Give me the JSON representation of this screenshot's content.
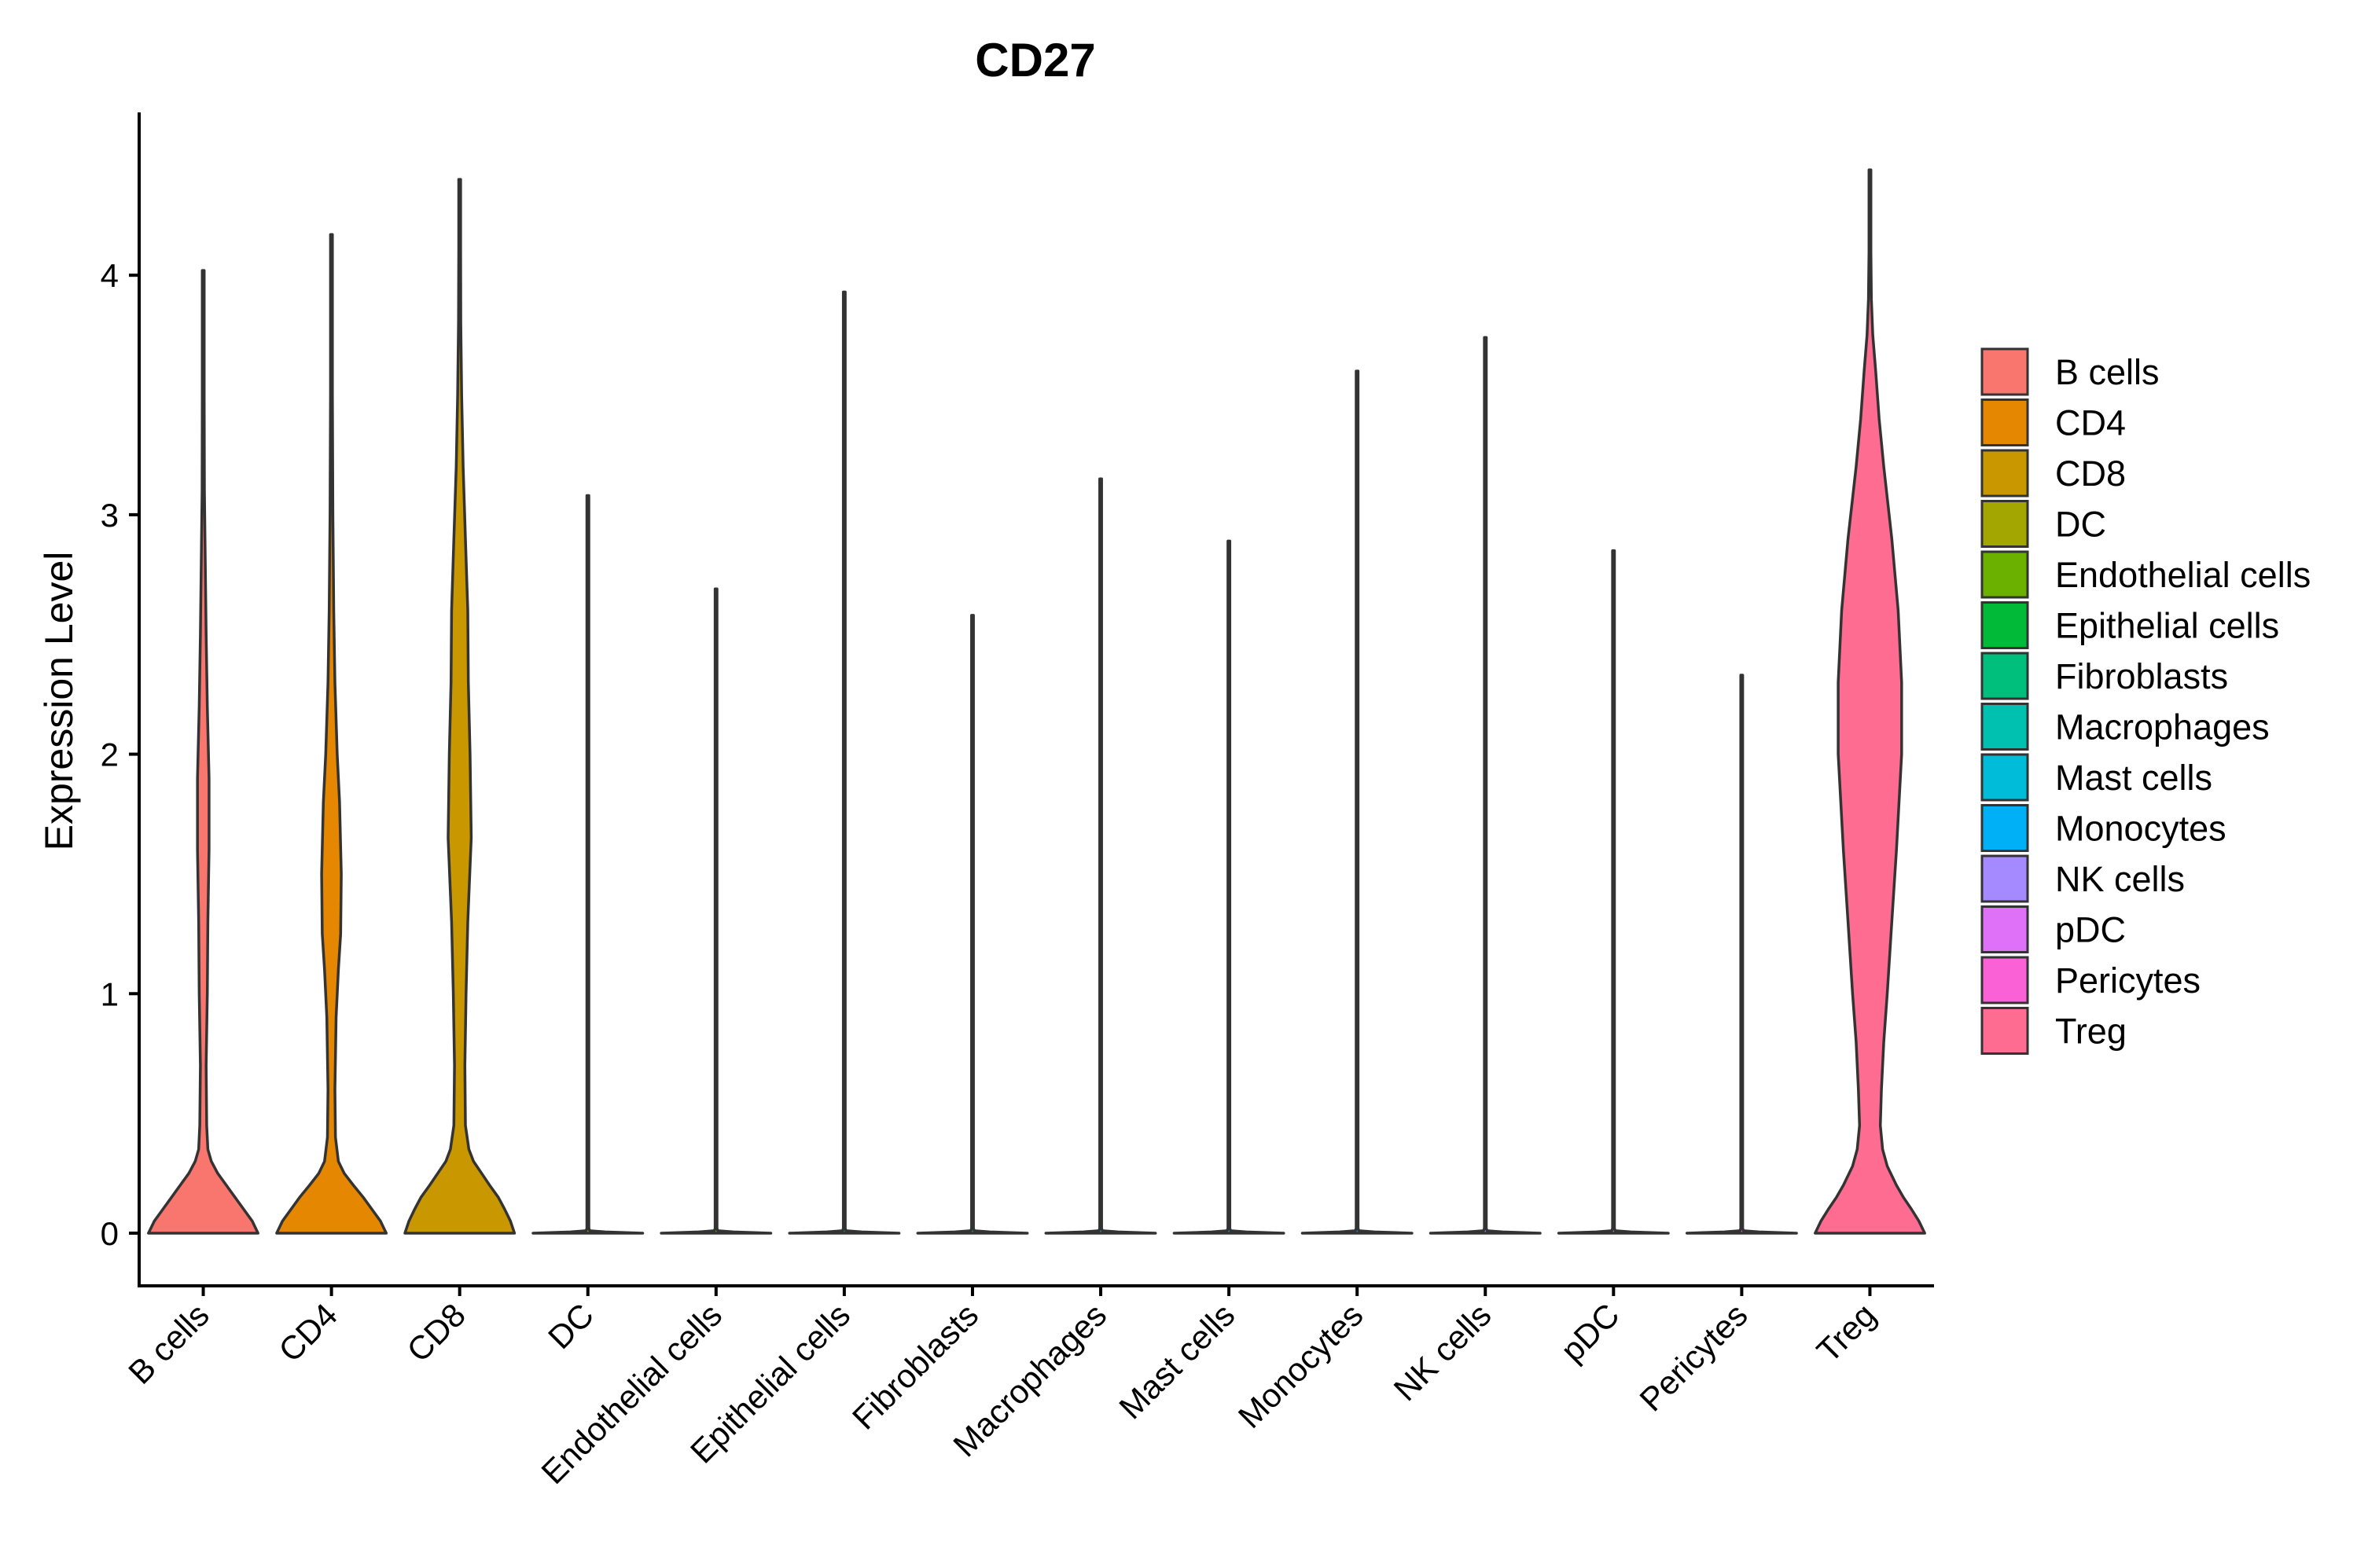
{
  "chart_data": {
    "type": "violin",
    "title": "CD27",
    "xlabel": "",
    "ylabel": "Expression Level",
    "ylim": [
      -0.22,
      4.68
    ],
    "yticks": [
      0,
      1,
      2,
      3,
      4
    ],
    "legend_position": "right",
    "categories": [
      "B cells",
      "CD4",
      "CD8",
      "DC",
      "Endothelial cells",
      "Epithelial cells",
      "Fibroblasts",
      "Macrophages",
      "Mast cells",
      "Monocytes",
      "NK cells",
      "pDC",
      "Pericytes",
      "Treg"
    ],
    "colors": [
      "#F8766D",
      "#E58700",
      "#C99800",
      "#A3A500",
      "#6BB100",
      "#00BA38",
      "#00BF7D",
      "#00C0AF",
      "#00BCD8",
      "#00B0F6",
      "#A58AFF",
      "#DF70F8",
      "#FB61D7",
      "#FF6C91"
    ],
    "series": [
      {
        "name": "B cells",
        "min": 0,
        "max": 4.02,
        "density": [
          [
            0,
            0.95
          ],
          [
            0.05,
            0.85
          ],
          [
            0.1,
            0.7
          ],
          [
            0.15,
            0.55
          ],
          [
            0.2,
            0.4
          ],
          [
            0.25,
            0.25
          ],
          [
            0.3,
            0.14
          ],
          [
            0.35,
            0.08
          ],
          [
            0.45,
            0.06
          ],
          [
            0.7,
            0.05
          ],
          [
            1.0,
            0.07
          ],
          [
            1.3,
            0.08
          ],
          [
            1.6,
            0.1
          ],
          [
            1.9,
            0.1
          ],
          [
            2.2,
            0.07
          ],
          [
            2.5,
            0.05
          ],
          [
            2.8,
            0.035
          ],
          [
            3.1,
            0.02
          ],
          [
            3.5,
            0.012
          ],
          [
            4.02,
            0.004
          ]
        ]
      },
      {
        "name": "CD4",
        "min": 0,
        "max": 4.17,
        "density": [
          [
            0,
            0.95
          ],
          [
            0.05,
            0.85
          ],
          [
            0.1,
            0.7
          ],
          [
            0.15,
            0.55
          ],
          [
            0.2,
            0.38
          ],
          [
            0.25,
            0.22
          ],
          [
            0.3,
            0.12
          ],
          [
            0.4,
            0.07
          ],
          [
            0.6,
            0.06
          ],
          [
            0.9,
            0.08
          ],
          [
            1.1,
            0.12
          ],
          [
            1.25,
            0.16
          ],
          [
            1.5,
            0.17
          ],
          [
            1.8,
            0.14
          ],
          [
            2.0,
            0.1
          ],
          [
            2.3,
            0.06
          ],
          [
            2.6,
            0.04
          ],
          [
            3.0,
            0.025
          ],
          [
            3.5,
            0.015
          ],
          [
            4.17,
            0.004
          ]
        ]
      },
      {
        "name": "CD8",
        "min": 0,
        "max": 4.4,
        "density": [
          [
            0,
            0.95
          ],
          [
            0.05,
            0.88
          ],
          [
            0.1,
            0.78
          ],
          [
            0.15,
            0.67
          ],
          [
            0.2,
            0.52
          ],
          [
            0.25,
            0.38
          ],
          [
            0.3,
            0.24
          ],
          [
            0.35,
            0.16
          ],
          [
            0.45,
            0.1
          ],
          [
            0.7,
            0.09
          ],
          [
            1.0,
            0.11
          ],
          [
            1.3,
            0.14
          ],
          [
            1.65,
            0.2
          ],
          [
            2.0,
            0.18
          ],
          [
            2.3,
            0.15
          ],
          [
            2.6,
            0.14
          ],
          [
            2.9,
            0.1
          ],
          [
            3.2,
            0.06
          ],
          [
            3.5,
            0.035
          ],
          [
            3.8,
            0.02
          ],
          [
            4.1,
            0.01
          ],
          [
            4.4,
            0.004
          ]
        ]
      },
      {
        "name": "DC",
        "min": 0,
        "max": 3.08,
        "density": [
          [
            0,
            0.95
          ],
          [
            0.005,
            0.3
          ],
          [
            0.01,
            0.03
          ],
          [
            0.02,
            0.01
          ],
          [
            0.05,
            0.006
          ],
          [
            3.08,
            0.004
          ]
        ]
      },
      {
        "name": "Endothelial cells",
        "min": 0,
        "max": 2.69,
        "density": [
          [
            0,
            0.95
          ],
          [
            0.005,
            0.3
          ],
          [
            0.01,
            0.03
          ],
          [
            0.02,
            0.01
          ],
          [
            0.05,
            0.006
          ],
          [
            2.69,
            0.004
          ]
        ]
      },
      {
        "name": "Epithelial cells",
        "min": 0,
        "max": 3.93,
        "density": [
          [
            0,
            0.95
          ],
          [
            0.005,
            0.3
          ],
          [
            0.01,
            0.03
          ],
          [
            0.02,
            0.01
          ],
          [
            0.05,
            0.006
          ],
          [
            3.93,
            0.004
          ]
        ]
      },
      {
        "name": "Fibroblasts",
        "min": 0,
        "max": 2.58,
        "density": [
          [
            0,
            0.95
          ],
          [
            0.005,
            0.3
          ],
          [
            0.01,
            0.03
          ],
          [
            0.02,
            0.01
          ],
          [
            0.05,
            0.006
          ],
          [
            2.58,
            0.004
          ]
        ]
      },
      {
        "name": "Macrophages",
        "min": 0,
        "max": 3.15,
        "density": [
          [
            0,
            0.95
          ],
          [
            0.005,
            0.3
          ],
          [
            0.01,
            0.03
          ],
          [
            0.02,
            0.01
          ],
          [
            0.05,
            0.006
          ],
          [
            3.15,
            0.004
          ]
        ]
      },
      {
        "name": "Mast cells",
        "min": 0,
        "max": 2.89,
        "density": [
          [
            0,
            0.95
          ],
          [
            0.005,
            0.3
          ],
          [
            0.01,
            0.03
          ],
          [
            0.02,
            0.01
          ],
          [
            0.05,
            0.006
          ],
          [
            2.89,
            0.004
          ]
        ]
      },
      {
        "name": "Monocytes",
        "min": 0,
        "max": 3.6,
        "density": [
          [
            0,
            0.95
          ],
          [
            0.005,
            0.3
          ],
          [
            0.01,
            0.03
          ],
          [
            0.02,
            0.01
          ],
          [
            0.05,
            0.006
          ],
          [
            3.6,
            0.004
          ]
        ]
      },
      {
        "name": "NK cells",
        "min": 0,
        "max": 3.74,
        "density": [
          [
            0,
            0.95
          ],
          [
            0.005,
            0.3
          ],
          [
            0.01,
            0.03
          ],
          [
            0.02,
            0.01
          ],
          [
            0.05,
            0.006
          ],
          [
            3.74,
            0.004
          ]
        ]
      },
      {
        "name": "pDC",
        "min": 0,
        "max": 2.85,
        "density": [
          [
            0,
            0.95
          ],
          [
            0.005,
            0.3
          ],
          [
            0.01,
            0.03
          ],
          [
            0.02,
            0.01
          ],
          [
            0.05,
            0.006
          ],
          [
            2.85,
            0.004
          ]
        ]
      },
      {
        "name": "Pericytes",
        "min": 0,
        "max": 2.33,
        "density": [
          [
            0,
            0.95
          ],
          [
            0.005,
            0.3
          ],
          [
            0.01,
            0.03
          ],
          [
            0.02,
            0.01
          ],
          [
            0.05,
            0.006
          ],
          [
            2.33,
            0.004
          ]
        ]
      },
      {
        "name": "Treg",
        "min": 0,
        "max": 4.44,
        "density": [
          [
            0,
            0.95
          ],
          [
            0.05,
            0.85
          ],
          [
            0.1,
            0.72
          ],
          [
            0.15,
            0.58
          ],
          [
            0.2,
            0.46
          ],
          [
            0.28,
            0.3
          ],
          [
            0.35,
            0.22
          ],
          [
            0.45,
            0.18
          ],
          [
            0.6,
            0.2
          ],
          [
            0.8,
            0.24
          ],
          [
            1.0,
            0.3
          ],
          [
            1.3,
            0.38
          ],
          [
            1.6,
            0.46
          ],
          [
            2.0,
            0.55
          ],
          [
            2.3,
            0.55
          ],
          [
            2.6,
            0.49
          ],
          [
            2.9,
            0.38
          ],
          [
            3.2,
            0.24
          ],
          [
            3.4,
            0.16
          ],
          [
            3.6,
            0.1
          ],
          [
            3.75,
            0.05
          ],
          [
            3.9,
            0.025
          ],
          [
            4.1,
            0.01
          ],
          [
            4.44,
            0.004
          ]
        ]
      }
    ]
  }
}
